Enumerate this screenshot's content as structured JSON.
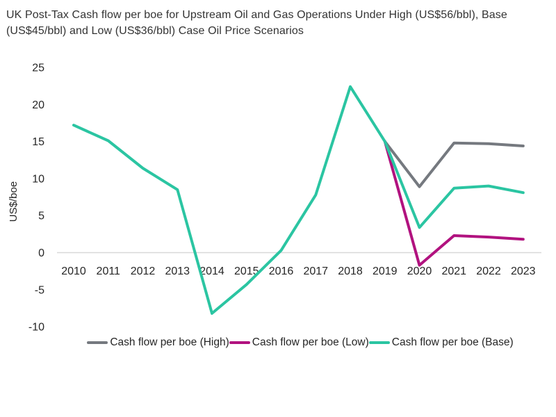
{
  "title": {
    "line1": "UK Post-Tax Cash flow per boe for Upstream Oil and Gas Operations Under High (US$56/bbl), Base",
    "line2": "(US$45/bbl) and Low (US$36/bbl) Case Oil Price Scenarios"
  },
  "chart_data": {
    "type": "line",
    "x": [
      2010,
      2011,
      2012,
      2013,
      2014,
      2015,
      2016,
      2017,
      2018,
      2019,
      2020,
      2021,
      2022,
      2023
    ],
    "xlabel": "",
    "ylabel": "US$/boe",
    "ylim": [
      -10,
      25
    ],
    "yticks": [
      25,
      20,
      15,
      10,
      5,
      0,
      -5,
      -10
    ],
    "grid": "zero-baseline-only",
    "legend_position": "bottom",
    "series": [
      {
        "name": "Cash flow per boe (High)",
        "slug": "high",
        "color": "#75797F",
        "values": [
          null,
          null,
          null,
          null,
          null,
          null,
          null,
          null,
          null,
          15.0,
          8.9,
          14.8,
          14.7,
          14.4
        ]
      },
      {
        "name": "Cash flow per boe (Low)",
        "slug": "low",
        "color": "#B1127F",
        "values": [
          null,
          null,
          null,
          null,
          null,
          null,
          null,
          null,
          null,
          15.0,
          -1.7,
          2.3,
          2.1,
          1.8
        ]
      },
      {
        "name": "Cash flow per boe (Base)",
        "slug": "base",
        "color": "#2BC5A2",
        "values": [
          17.2,
          15.1,
          11.4,
          8.5,
          -8.2,
          -4.3,
          0.3,
          7.8,
          22.4,
          15.0,
          3.4,
          8.7,
          9.0,
          8.1
        ]
      }
    ]
  },
  "colors": {
    "zero_line": "#D8D8D8",
    "axis_text": "#262626",
    "title_text": "#333333"
  }
}
